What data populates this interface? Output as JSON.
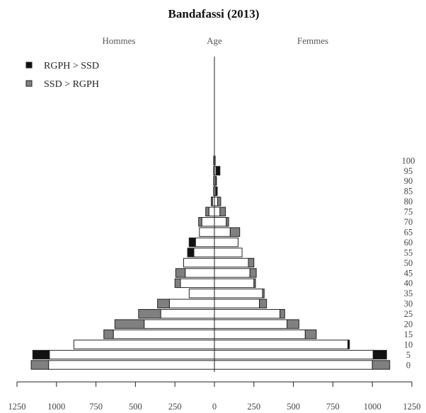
{
  "chart_data": {
    "type": "bar",
    "title": "Bandafassi (2013)",
    "headers": {
      "left": "Hommes",
      "center": "Age",
      "right": "Femmes"
    },
    "legend": [
      {
        "label": "RGPH > SSD",
        "color": "#111111"
      },
      {
        "label": "SSD > RGPH",
        "color": "#808080"
      }
    ],
    "colors": {
      "base": "#ffffff",
      "rgph_gt_ssd": "#111111",
      "ssd_gt_rgph": "#808080",
      "outline": "#222222"
    },
    "xlim": [
      -1250,
      1250
    ],
    "x_ticks": [
      {
        "value": -1250,
        "label": "1250"
      },
      {
        "value": -1000,
        "label": "1000"
      },
      {
        "value": -750,
        "label": "750"
      },
      {
        "value": -500,
        "label": "500"
      },
      {
        "value": -250,
        "label": "250"
      },
      {
        "value": 0,
        "label": "0"
      },
      {
        "value": 250,
        "label": "250"
      },
      {
        "value": 500,
        "label": "500"
      },
      {
        "value": 750,
        "label": "750"
      },
      {
        "value": 1000,
        "label": "1000"
      },
      {
        "value": 1250,
        "label": "1250"
      }
    ],
    "age_groups": [
      "0",
      "5",
      "10",
      "15",
      "20",
      "25",
      "30",
      "35",
      "40",
      "45",
      "50",
      "55",
      "60",
      "65",
      "70",
      "75",
      "80",
      "85",
      "90",
      "95",
      "100"
    ],
    "males": {
      "base": [
        1050,
        1045,
        890,
        640,
        445,
        340,
        285,
        160,
        215,
        185,
        195,
        130,
        120,
        95,
        80,
        35,
        12,
        5,
        5,
        5,
        5
      ],
      "rgph_gt_ssd": [
        0,
        105,
        0,
        0,
        0,
        0,
        0,
        0,
        0,
        0,
        0,
        40,
        40,
        0,
        0,
        0,
        0,
        0,
        0,
        0,
        0
      ],
      "ssd_gt_rgph": [
        110,
        0,
        0,
        60,
        185,
        140,
        75,
        0,
        35,
        60,
        0,
        0,
        0,
        0,
        20,
        20,
        8,
        0,
        0,
        0,
        0
      ]
    },
    "females": {
      "base": [
        1000,
        1005,
        845,
        575,
        460,
        415,
        285,
        305,
        250,
        225,
        215,
        175,
        150,
        100,
        75,
        35,
        20,
        8,
        8,
        10,
        5
      ],
      "rgph_gt_ssd": [
        0,
        85,
        10,
        0,
        0,
        0,
        0,
        0,
        0,
        0,
        0,
        0,
        0,
        0,
        0,
        0,
        0,
        10,
        5,
        25,
        0
      ],
      "ssd_gt_rgph": [
        110,
        0,
        0,
        70,
        75,
        30,
        45,
        10,
        10,
        40,
        35,
        0,
        0,
        60,
        15,
        35,
        20,
        0,
        0,
        0,
        0
      ]
    }
  }
}
